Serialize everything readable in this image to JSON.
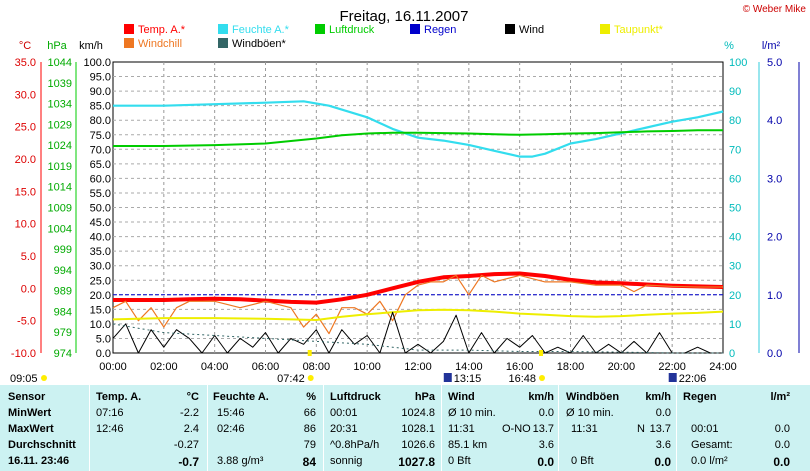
{
  "chart_data": {
    "type": "line",
    "title": "Freitag, 16.11.2007",
    "copyright": "© Weber Mike",
    "x_ticks": [
      "00:00",
      "02:00",
      "04:00",
      "06:00",
      "08:00",
      "10:00",
      "12:00",
      "14:00",
      "16:00",
      "18:00",
      "20:00",
      "22:00",
      "24:00"
    ],
    "xlim": [
      0,
      24
    ],
    "axes": {
      "temp_c": {
        "unit": "°C",
        "ticks": [
          "35.0",
          "30.0",
          "25.0",
          "20.0",
          "15.0",
          "10.0",
          "5.0",
          "0.0",
          "-5.0",
          "-10.0"
        ],
        "ylim": [
          -10,
          35
        ],
        "color": "#ff0000"
      },
      "pressure_hpa": {
        "unit": "hPa",
        "ticks": [
          "1044",
          "1039",
          "1034",
          "1029",
          "1024",
          "1019",
          "1014",
          "1009",
          "1004",
          "999",
          "994",
          "989",
          "984",
          "979",
          "974"
        ],
        "ylim": [
          974,
          1044
        ],
        "color": "#00bb00"
      },
      "wind_kmh": {
        "unit": "km/h",
        "ticks": [
          "100.0",
          "95.0",
          "90.0",
          "85.0",
          "80.0",
          "75.0",
          "70.0",
          "65.0",
          "60.0",
          "55.0",
          "50.0",
          "45.0",
          "40.0",
          "35.0",
          "30.0",
          "25.0",
          "20.0",
          "15.0",
          "10.0",
          "5.0",
          "0.0"
        ],
        "ylim": [
          0,
          100
        ],
        "color": "#000000"
      },
      "humidity_pct": {
        "unit": "%",
        "ticks": [
          "100",
          "90",
          "80",
          "70",
          "60",
          "50",
          "40",
          "30",
          "20",
          "10",
          "0"
        ],
        "ylim": [
          0,
          100
        ],
        "color": "#00cccc"
      },
      "rain_lm2": {
        "unit": "l/m²",
        "ticks": [
          "5.0",
          "4.0",
          "3.0",
          "2.0",
          "1.0",
          "0.0"
        ],
        "ylim": [
          0,
          5
        ],
        "color": "#0000aa"
      }
    },
    "legend": [
      {
        "name": "Temp. A.*",
        "color": "#ff0000"
      },
      {
        "name": "Feuchte A.*",
        "color": "#33ddee"
      },
      {
        "name": "Luftdruck",
        "color": "#00cc00"
      },
      {
        "name": "Regen",
        "color": "#0000cc"
      },
      {
        "name": "Wind",
        "color": "#000000"
      },
      {
        "name": "Taupunkt*",
        "color": "#eeee00"
      },
      {
        "name": "Windchill",
        "color": "#ee7722"
      },
      {
        "name": "Windböen*",
        "color": "#336666"
      }
    ],
    "series": [
      {
        "name": "Feuchte A.*",
        "axis": "humidity_pct",
        "color": "#33ddee",
        "x": [
          0,
          2,
          4,
          6,
          7.5,
          8.5,
          10,
          11,
          12,
          13,
          14,
          15,
          16,
          16.5,
          17,
          18,
          19,
          20,
          21,
          22,
          23,
          24
        ],
        "y": [
          85,
          85,
          85.5,
          86,
          86.5,
          85,
          81,
          77,
          74,
          73,
          71.5,
          69.5,
          67.5,
          67.5,
          68.5,
          72,
          73.5,
          75.5,
          77.5,
          79.5,
          81,
          83
        ]
      },
      {
        "name": "Luftdruck",
        "axis": "pressure_hpa",
        "color": "#00cc00",
        "x": [
          0,
          2,
          4,
          6,
          8,
          9,
          10,
          11,
          12,
          13,
          14,
          15,
          16,
          17,
          18,
          19,
          20,
          21,
          22,
          23,
          24
        ],
        "y": [
          1023.8,
          1023.8,
          1024,
          1024.4,
          1025.6,
          1026.4,
          1026.8,
          1027,
          1027,
          1026.9,
          1026.8,
          1026.6,
          1026.5,
          1026.6,
          1026.8,
          1026.9,
          1027.1,
          1027.3,
          1027.4,
          1027.6,
          1027.6
        ]
      },
      {
        "name": "Temp. A.*",
        "axis": "temp_c",
        "color": "#ff0000",
        "x": [
          0,
          1,
          2,
          3,
          4,
          5,
          6,
          7,
          8,
          9,
          10,
          11,
          12,
          13,
          14,
          15,
          16,
          17,
          18,
          19,
          20,
          21,
          22,
          23,
          24
        ],
        "y": [
          -1.8,
          -1.8,
          -1.8,
          -1.7,
          -1.6,
          -1.7,
          -1.9,
          -2.1,
          -2.2,
          -1.7,
          -1.0,
          0.0,
          1.0,
          1.7,
          1.9,
          2.2,
          2.3,
          1.9,
          1.3,
          0.9,
          0.8,
          0.6,
          0.4,
          0.3,
          0.2
        ]
      },
      {
        "name": "Windchill",
        "axis": "temp_c",
        "color": "#ee7722",
        "x": [
          0,
          0.5,
          1,
          1.5,
          2,
          2.5,
          3,
          4,
          5,
          6,
          7,
          7.5,
          8,
          8.5,
          9,
          9.5,
          10,
          10.5,
          11,
          11.5,
          12,
          12.5,
          13,
          13.5,
          14,
          14.5,
          15,
          16,
          17,
          18,
          19,
          20,
          20.5,
          21,
          22,
          23,
          24
        ],
        "y": [
          -3,
          -2,
          -5,
          -3,
          -6,
          -3,
          -2,
          -2,
          -3,
          -2,
          -3,
          -6,
          -4,
          -7,
          -3,
          -3,
          -4,
          -2,
          -5,
          -1,
          0.5,
          1,
          1,
          2,
          -1,
          2,
          1,
          2,
          1,
          1,
          0.5,
          0.5,
          -0.5,
          0.5,
          0.3,
          0.2,
          0.2
        ]
      },
      {
        "name": "Taupunkt*",
        "axis": "temp_c",
        "color": "#eeee00",
        "x": [
          0,
          2,
          4,
          6,
          8,
          9,
          10,
          11,
          12,
          13,
          14,
          15,
          16,
          17,
          18,
          19,
          20,
          21,
          22,
          23,
          24
        ],
        "y": [
          -4.8,
          -4.6,
          -4.6,
          -4.7,
          -4.9,
          -4.4,
          -4.0,
          -3.7,
          -3.4,
          -3.3,
          -3.4,
          -3.6,
          -3.9,
          -4.1,
          -4.3,
          -4.4,
          -4.3,
          -4.1,
          -3.9,
          -3.8,
          -3.6
        ]
      },
      {
        "name": "Wind",
        "axis": "wind_kmh",
        "color": "#000000",
        "x": [
          0,
          0.5,
          1,
          1.5,
          2,
          2.5,
          3,
          3.5,
          4,
          4.5,
          5,
          5.5,
          6,
          6.5,
          7,
          7.5,
          8,
          8.5,
          9,
          9.5,
          10,
          10.5,
          11,
          11.5,
          12,
          12.5,
          13,
          13.5,
          14,
          14.5,
          15,
          15.5,
          16,
          16.5,
          17,
          17.5,
          18,
          18.5,
          19,
          19.5,
          20,
          20.5,
          21,
          21.5,
          22,
          22.5,
          23,
          23.5,
          24
        ],
        "y": [
          5,
          10,
          0,
          8,
          2,
          8,
          5,
          0,
          6,
          0,
          5,
          2,
          7,
          0,
          5,
          3,
          8,
          0,
          8,
          3,
          6,
          0,
          14,
          0,
          3,
          0,
          4,
          13,
          0,
          7,
          0,
          5,
          2,
          6,
          0,
          2,
          0,
          6,
          0,
          3,
          0,
          4,
          0,
          7,
          0,
          0,
          2,
          0,
          0
        ]
      },
      {
        "name": "Windböen*",
        "axis": "wind_kmh",
        "color": "#336666",
        "x": [
          0,
          2,
          4,
          6,
          8,
          10,
          11,
          12,
          14,
          16,
          18,
          20,
          22,
          24
        ],
        "y": [
          10,
          7,
          6,
          5,
          4,
          3,
          2,
          1,
          1,
          0.5,
          0.5,
          0.3,
          0,
          0
        ]
      }
    ],
    "rain_zero_line": {
      "axis": "rain_lm2",
      "value": 1.0
    },
    "annotations": {
      "sunrise": "07:42",
      "sunset": "16:48",
      "day_start": "09:05",
      "moonrise": "13:15",
      "moonset": "22:06"
    }
  },
  "table": {
    "labels": {
      "sensor": "Sensor",
      "min": "MinWert",
      "max": "MaxWert",
      "avg": "Durchschnitt",
      "current": "16.11. 23:46"
    },
    "temp": {
      "header": "Temp. A.",
      "unit": "°C",
      "min_time": "07:16",
      "min_val": "-2.2",
      "max_time": "12:46",
      "max_val": "2.4",
      "avg": "-0.27",
      "current": "-0.7"
    },
    "humidity": {
      "header": "Feuchte A.",
      "unit": "%",
      "min_time": "15:46",
      "min_val": "66",
      "max_time": "02:46",
      "max_val": "86",
      "avg": "79",
      "current_extra": "3.88 g/m³",
      "current": "84"
    },
    "pressure": {
      "header": "Luftdruck",
      "unit": "hPa",
      "min_time": "00:01",
      "min_val": "1024.8",
      "max_time": "20:31",
      "max_val": "1028.1",
      "avg_label": "^0.8hPa/h",
      "avg": "1026.6",
      "current_label": "sonnig",
      "current": "1027.8"
    },
    "wind": {
      "header": "Wind",
      "unit": "km/h",
      "row1_label": "Ø 10 min.",
      "row1_val": "0.0",
      "row2_time": "11:31",
      "row2_dir": "O-NO",
      "row2_val": "13.7",
      "row3_label": "85.1 km",
      "row3_val": "3.6",
      "row4_label": "0 Bft",
      "row4_val": "0.0"
    },
    "gusts": {
      "header": "Windböen",
      "unit": "km/h",
      "row1_label": "Ø 10 min.",
      "row1_val": "0.0",
      "row2_time": "11:31",
      "row2_dir": "N",
      "row2_val": "13.7",
      "row3_val": "3.6",
      "row4_label": "0 Bft",
      "row4_val": "0.0"
    },
    "rain": {
      "header": "Regen",
      "unit": "l/m²",
      "row2_time": "00:01",
      "row2_val": "0.0",
      "row3_label": "Gesamt:",
      "row3_val": "0.0",
      "row4_label": "0.0 l/m²",
      "row4_val": "0.0"
    }
  }
}
